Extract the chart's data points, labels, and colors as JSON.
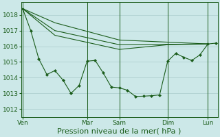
{
  "background_color": "#cce8e8",
  "grid_color": "#aacccc",
  "line_color": "#1a5c1a",
  "xlabel": "Pression niveau de la mer( hPa )",
  "xlabel_fontsize": 8,
  "yticks": [
    1012,
    1013,
    1014,
    1015,
    1016,
    1017,
    1018
  ],
  "ylim": [
    1011.5,
    1018.8
  ],
  "xlim": [
    -0.2,
    24.2
  ],
  "xtick_labels": [
    "Ven",
    "",
    "Mar",
    "Sam",
    "",
    "Dim",
    "",
    "Lun"
  ],
  "xtick_positions": [
    0,
    4,
    8,
    12,
    16,
    18,
    21,
    23
  ],
  "vlines_x": [
    0,
    8,
    12,
    18,
    23
  ],
  "line1_x": [
    0,
    4,
    12,
    23
  ],
  "line1_y": [
    1018.4,
    1017.5,
    1016.4,
    1016.15
  ],
  "line2_x": [
    0,
    4,
    12,
    23
  ],
  "line2_y": [
    1018.4,
    1017.0,
    1016.1,
    1016.15
  ],
  "line3_x": [
    0,
    4,
    12,
    18,
    23
  ],
  "line3_y": [
    1018.4,
    1016.7,
    1015.8,
    1016.1,
    1016.15
  ],
  "jagged_x": [
    0,
    1,
    2,
    3,
    4,
    5,
    6,
    7,
    8,
    9,
    10,
    11,
    12,
    13,
    14,
    15,
    16,
    17,
    18,
    19,
    20,
    21,
    22,
    23,
    24
  ],
  "jagged_y": [
    1018.4,
    1017.0,
    1015.2,
    1014.2,
    1014.45,
    1013.85,
    1013.0,
    1013.5,
    1015.05,
    1015.1,
    1014.3,
    1013.4,
    1013.35,
    1013.2,
    1012.8,
    1012.82,
    1012.85,
    1012.9,
    1015.05,
    1015.55,
    1015.3,
    1015.1,
    1015.45,
    1016.15,
    1016.2
  ]
}
